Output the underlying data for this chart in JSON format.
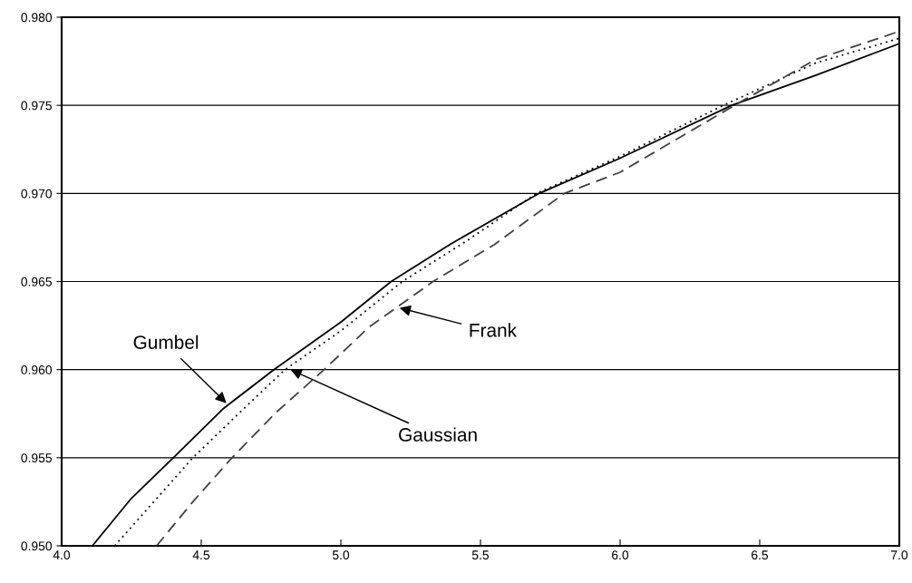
{
  "chart_data": {
    "type": "line",
    "xlim": [
      4.0,
      7.0
    ],
    "ylim": [
      0.95,
      0.98
    ],
    "xticks": [
      {
        "value": 4.0,
        "label": "4.0"
      },
      {
        "value": 4.5,
        "label": "4.5"
      },
      {
        "value": 5.0,
        "label": "5.0"
      },
      {
        "value": 5.5,
        "label": "5.5"
      },
      {
        "value": 6.0,
        "label": "6.0"
      },
      {
        "value": 6.5,
        "label": "6.5"
      },
      {
        "value": 7.0,
        "label": "7.0"
      }
    ],
    "yticks": [
      {
        "value": 0.95,
        "label": "0.950"
      },
      {
        "value": 0.955,
        "label": "0.955"
      },
      {
        "value": 0.96,
        "label": "0.960"
      },
      {
        "value": 0.965,
        "label": "0.965"
      },
      {
        "value": 0.97,
        "label": "0.970"
      },
      {
        "value": 0.975,
        "label": "0.975"
      },
      {
        "value": 0.98,
        "label": "0.980"
      }
    ],
    "grid": "y",
    "marker": "none",
    "series": [
      {
        "color": "#000000",
        "line_style": "solid",
        "x": [
          4.11,
          4.25,
          4.4,
          4.58,
          4.76,
          5.0,
          5.18,
          5.39,
          5.71,
          6.0,
          6.4,
          6.7,
          7.0
        ],
        "values": [
          0.95,
          0.9527,
          0.955,
          0.9578,
          0.96,
          0.9627,
          0.965,
          0.9671,
          0.97,
          0.972,
          0.975,
          0.9767,
          0.9785
        ]
      },
      {
        "color": "#000000",
        "line_style": "dotted",
        "x": [
          4.19,
          4.33,
          4.47,
          4.64,
          4.8,
          5.0,
          5.22,
          5.45,
          5.7,
          6.0,
          6.37,
          6.7,
          7.0
        ],
        "values": [
          0.95,
          0.9525,
          0.955,
          0.9576,
          0.96,
          0.9622,
          0.965,
          0.9673,
          0.97,
          0.9721,
          0.975,
          0.9774,
          0.9788
        ]
      },
      {
        "color": "#404040",
        "line_style": "dashed",
        "x": [
          4.34,
          4.47,
          4.61,
          4.77,
          4.94,
          5.1,
          5.33,
          5.55,
          5.8,
          6.0,
          6.41,
          6.7,
          7.0
        ],
        "values": [
          0.95,
          0.9525,
          0.955,
          0.9576,
          0.96,
          0.9624,
          0.965,
          0.9671,
          0.97,
          0.9712,
          0.975,
          0.9776,
          0.9792
        ]
      }
    ],
    "annotations": [
      {
        "text": "Gumbel",
        "x": 4.59,
        "y": 0.9581
      },
      {
        "text": "Gaussian",
        "x": 4.82,
        "y": 0.96
      },
      {
        "text": "Frank",
        "x": 5.21,
        "y": 0.9635
      }
    ]
  }
}
